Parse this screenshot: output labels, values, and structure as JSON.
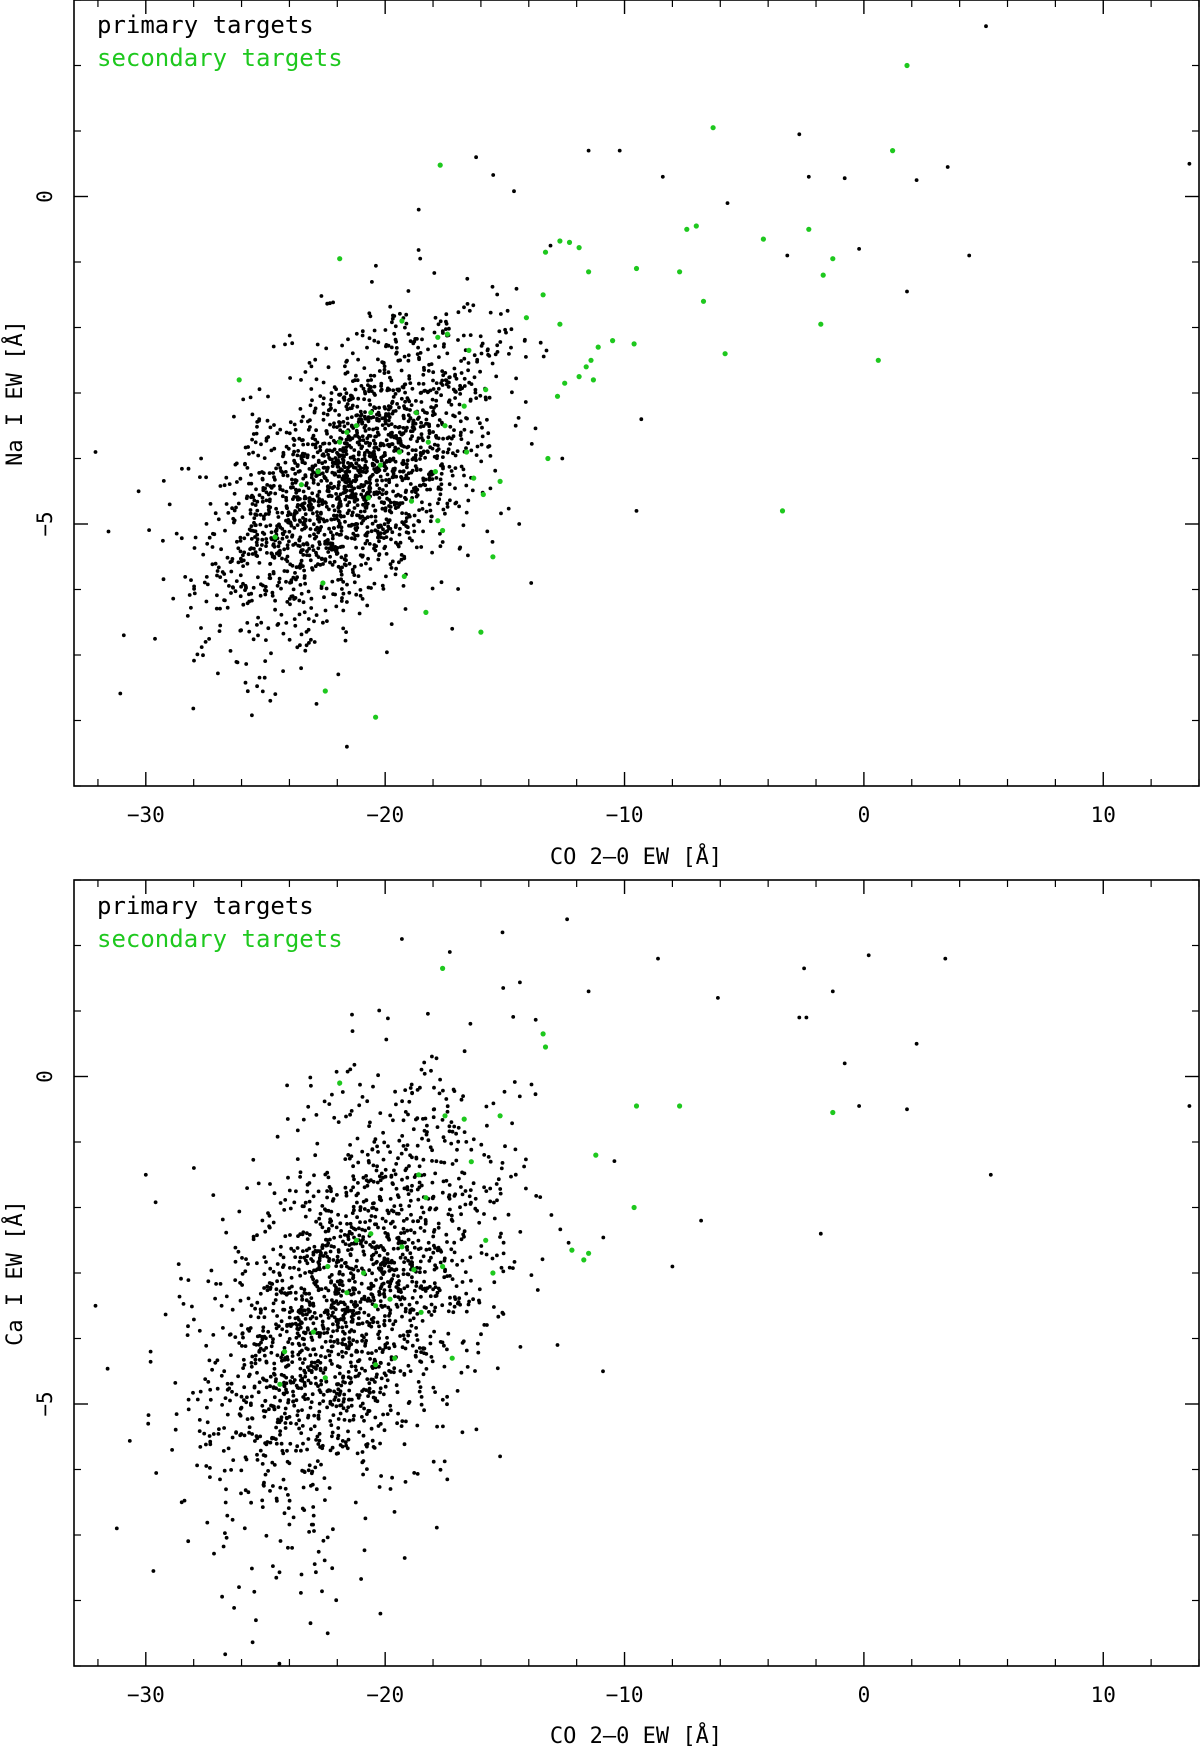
{
  "colors": {
    "primary": "#000000",
    "secondary": "#1ec81e",
    "frame": "#000000"
  },
  "chart_data": [
    {
      "type": "scatter",
      "xlabel": "CO 2–0 EW [Å]",
      "ylabel": "Na I EW [Å]",
      "xlim": [
        -33,
        14
      ],
      "ylim": [
        -9,
        3
      ],
      "x_ticks": [
        -30,
        -20,
        -10,
        0,
        10
      ],
      "x_tick_labels": [
        "−30",
        "−20",
        "−10",
        "0",
        "10"
      ],
      "y_ticks": [
        0,
        -5
      ],
      "y_tick_labels": [
        "0",
        "−5"
      ],
      "legend_position": "top-left",
      "legend": [
        {
          "name": "primary targets",
          "color": "#000000"
        },
        {
          "name": "secondary targets",
          "color": "#1ec81e"
        }
      ],
      "primary_cloud": {
        "n": 2050,
        "center": [
          -21.5,
          -4.3
        ],
        "sx": 2.9,
        "sy": 1.15,
        "rho": 0.55,
        "seed": 11
      },
      "series": [
        {
          "name": "primary targets",
          "color": "#000000",
          "points": [
            [
              5.1,
              2.6
            ],
            [
              13.6,
              0.5
            ],
            [
              3.5,
              0.45
            ],
            [
              2.2,
              0.25
            ],
            [
              -0.8,
              0.28
            ],
            [
              -2.7,
              0.95
            ],
            [
              4.4,
              -0.9
            ],
            [
              1.8,
              -1.45
            ],
            [
              -0.2,
              -0.8
            ],
            [
              -2.3,
              0.3
            ],
            [
              -5.7,
              -0.1
            ],
            [
              -8.4,
              0.3
            ],
            [
              -10.2,
              0.7
            ],
            [
              -11.5,
              0.7
            ],
            [
              -16.2,
              0.6
            ],
            [
              -18.6,
              -0.2
            ],
            [
              -32.1,
              -3.9
            ],
            [
              -30.3,
              -4.5
            ],
            [
              -29.0,
              -4.7
            ],
            [
              -27.5,
              -6.8
            ],
            [
              -24.8,
              -7.7
            ],
            [
              -21.6,
              -8.4
            ],
            [
              -17.2,
              -6.6
            ],
            [
              -13.9,
              -5.9
            ],
            [
              -14.4,
              -5.0
            ],
            [
              -9.5,
              -4.8
            ],
            [
              -9.3,
              -3.4
            ],
            [
              -12.6,
              -4.0
            ],
            [
              -3.2,
              -0.9
            ]
          ]
        },
        {
          "name": "secondary targets",
          "color": "#1ec81e",
          "points": [
            [
              1.8,
              2.0
            ],
            [
              1.2,
              0.7
            ],
            [
              -6.3,
              1.05
            ],
            [
              -17.7,
              0.48
            ],
            [
              -21.9,
              -0.95
            ],
            [
              -7.0,
              -0.45
            ],
            [
              -7.4,
              -0.5
            ],
            [
              -4.2,
              -0.65
            ],
            [
              -2.3,
              -0.5
            ],
            [
              -1.3,
              -0.95
            ],
            [
              -1.7,
              -1.2
            ],
            [
              -1.8,
              -1.95
            ],
            [
              0.6,
              -2.5
            ],
            [
              -5.8,
              -2.4
            ],
            [
              -3.4,
              -4.8
            ],
            [
              -6.7,
              -1.6
            ],
            [
              -7.7,
              -1.15
            ],
            [
              -9.5,
              -1.1
            ],
            [
              -11.5,
              -1.15
            ],
            [
              -12.3,
              -0.7
            ],
            [
              -12.7,
              -0.68
            ],
            [
              -13.3,
              -0.85
            ],
            [
              -11.9,
              -0.78
            ],
            [
              -13.4,
              -1.5
            ],
            [
              -14.1,
              -1.85
            ],
            [
              -12.7,
              -1.95
            ],
            [
              -11.1,
              -2.3
            ],
            [
              -11.4,
              -2.5
            ],
            [
              -11.6,
              -2.6
            ],
            [
              -11.9,
              -2.75
            ],
            [
              -11.3,
              -2.8
            ],
            [
              -10.5,
              -2.2
            ],
            [
              -9.6,
              -2.25
            ],
            [
              -12.5,
              -2.85
            ],
            [
              -12.8,
              -3.05
            ],
            [
              -13.2,
              -4.0
            ],
            [
              -15.2,
              -4.35
            ],
            [
              -15.9,
              -4.55
            ],
            [
              -16.3,
              -4.3
            ],
            [
              -15.5,
              -5.5
            ],
            [
              -16.0,
              -6.65
            ],
            [
              -18.3,
              -6.35
            ],
            [
              -19.2,
              -5.8
            ],
            [
              -17.6,
              -5.1
            ],
            [
              -17.8,
              -4.95
            ],
            [
              -18.9,
              -4.65
            ],
            [
              -20.2,
              -4.1
            ],
            [
              -19.4,
              -3.9
            ],
            [
              -18.2,
              -3.75
            ],
            [
              -17.5,
              -3.5
            ],
            [
              -16.7,
              -3.2
            ],
            [
              -15.8,
              -2.95
            ],
            [
              -16.5,
              -2.35
            ],
            [
              -17.4,
              -2.1
            ],
            [
              -17.8,
              -2.15
            ],
            [
              -19.3,
              -1.9
            ],
            [
              -20.6,
              -3.3
            ],
            [
              -21.2,
              -3.5
            ],
            [
              -21.6,
              -3.6
            ],
            [
              -21.9,
              -3.75
            ],
            [
              -22.8,
              -4.2
            ],
            [
              -23.5,
              -4.4
            ],
            [
              -24.6,
              -5.2
            ],
            [
              -22.6,
              -5.9
            ],
            [
              -22.5,
              -7.55
            ],
            [
              -20.4,
              -7.95
            ],
            [
              -26.1,
              -2.8
            ],
            [
              -20.7,
              -4.6
            ],
            [
              -18.7,
              -3.3
            ],
            [
              -16.6,
              -3.9
            ],
            [
              -17.9,
              -4.2
            ]
          ]
        }
      ]
    },
    {
      "type": "scatter",
      "xlabel": "CO 2–0 EW [Å]",
      "ylabel": "Ca I EW [Å]",
      "xlim": [
        -33,
        14
      ],
      "ylim": [
        -9,
        3
      ],
      "x_ticks": [
        -30,
        -20,
        -10,
        0,
        10
      ],
      "x_tick_labels": [
        "−30",
        "−20",
        "−10",
        "0",
        "10"
      ],
      "y_ticks": [
        0,
        -5
      ],
      "y_tick_labels": [
        "0",
        "−5"
      ],
      "legend_position": "top-left",
      "legend": [
        {
          "name": "primary targets",
          "color": "#000000"
        },
        {
          "name": "secondary targets",
          "color": "#1ec81e"
        }
      ],
      "primary_cloud": {
        "n": 2000,
        "center": [
          -21.5,
          -3.5
        ],
        "sx": 3.0,
        "sy": 1.6,
        "rho": 0.45,
        "seed": 29
      },
      "series": [
        {
          "name": "primary targets",
          "color": "#000000",
          "points": [
            [
              -12.4,
              2.4
            ],
            [
              -15.1,
              2.2
            ],
            [
              -19.3,
              2.1
            ],
            [
              -17.3,
              1.9
            ],
            [
              -8.6,
              1.8
            ],
            [
              -2.5,
              1.65
            ],
            [
              0.2,
              1.85
            ],
            [
              3.4,
              1.8
            ],
            [
              -1.3,
              1.3
            ],
            [
              -2.7,
              0.9
            ],
            [
              -2.4,
              0.9
            ],
            [
              -6.1,
              1.2
            ],
            [
              -11.5,
              1.3
            ],
            [
              -0.8,
              0.2
            ],
            [
              2.2,
              0.5
            ],
            [
              1.8,
              -0.5
            ],
            [
              -0.2,
              -0.45
            ],
            [
              13.6,
              -0.45
            ],
            [
              5.3,
              -1.5
            ],
            [
              -1.8,
              -2.4
            ],
            [
              -8.0,
              -2.9
            ],
            [
              -30.0,
              -1.5
            ],
            [
              -32.1,
              -3.5
            ],
            [
              -29.8,
              -4.2
            ],
            [
              -29.9,
              -5.3
            ],
            [
              -28.5,
              -6.5
            ],
            [
              -25.4,
              -8.3
            ],
            [
              -22.4,
              -8.5
            ],
            [
              -20.2,
              -8.2
            ],
            [
              -15.2,
              -5.8
            ],
            [
              -10.9,
              -4.5
            ],
            [
              -12.8,
              -4.1
            ],
            [
              -6.8,
              -2.2
            ]
          ]
        },
        {
          "name": "secondary targets",
          "color": "#1ec81e",
          "points": [
            [
              -17.6,
              1.65
            ],
            [
              -13.4,
              0.65
            ],
            [
              -13.3,
              0.45
            ],
            [
              -21.9,
              -0.1
            ],
            [
              -9.5,
              -0.45
            ],
            [
              -7.7,
              -0.45
            ],
            [
              -1.3,
              -0.55
            ],
            [
              -15.2,
              -0.6
            ],
            [
              -16.7,
              -0.65
            ],
            [
              -17.5,
              -0.6
            ],
            [
              -11.2,
              -1.2
            ],
            [
              -16.4,
              -1.3
            ],
            [
              -18.6,
              -1.5
            ],
            [
              -18.3,
              -1.85
            ],
            [
              -9.6,
              -2.0
            ],
            [
              -15.8,
              -2.5
            ],
            [
              -12.2,
              -2.65
            ],
            [
              -11.7,
              -2.8
            ],
            [
              -11.5,
              -2.7
            ],
            [
              -15.5,
              -3.0
            ],
            [
              -17.6,
              -2.9
            ],
            [
              -18.8,
              -2.95
            ],
            [
              -19.3,
              -2.6
            ],
            [
              -20.6,
              -2.4
            ],
            [
              -21.2,
              -2.5
            ],
            [
              -22.4,
              -2.9
            ],
            [
              -21.6,
              -3.3
            ],
            [
              -20.4,
              -3.5
            ],
            [
              -19.6,
              -4.3
            ],
            [
              -20.4,
              -4.4
            ],
            [
              -22.5,
              -4.6
            ],
            [
              -24.4,
              -4.7
            ],
            [
              -17.2,
              -4.3
            ],
            [
              -18.5,
              -3.6
            ],
            [
              -20.9,
              -3.0
            ],
            [
              -23.0,
              -3.9
            ],
            [
              -24.2,
              -4.2
            ],
            [
              -19.8,
              -3.4
            ]
          ]
        }
      ]
    }
  ]
}
